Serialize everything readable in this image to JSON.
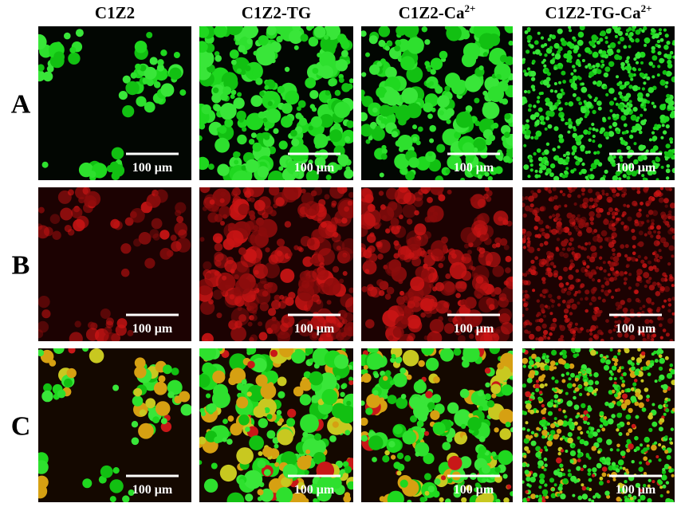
{
  "columns": [
    {
      "title": "C1Z2"
    },
    {
      "title": "C1Z2-TG"
    },
    {
      "title": "C1Z2-Ca",
      "superscript": "2+"
    },
    {
      "title": "C1Z2-TG-Ca",
      "superscript": "2+"
    }
  ],
  "rows": [
    {
      "label": "A",
      "scale_bars": [
        "100 μm",
        "100 μm",
        "100 μm",
        "100 μm"
      ]
    },
    {
      "label": "B",
      "scale_bars": [
        "100 μm",
        "100 μm",
        "100 μm",
        "100 μm"
      ]
    },
    {
      "label": "C",
      "scale_bars": [
        "100 μm",
        "100 μm",
        "100 μm",
        "100 μm"
      ]
    }
  ]
}
